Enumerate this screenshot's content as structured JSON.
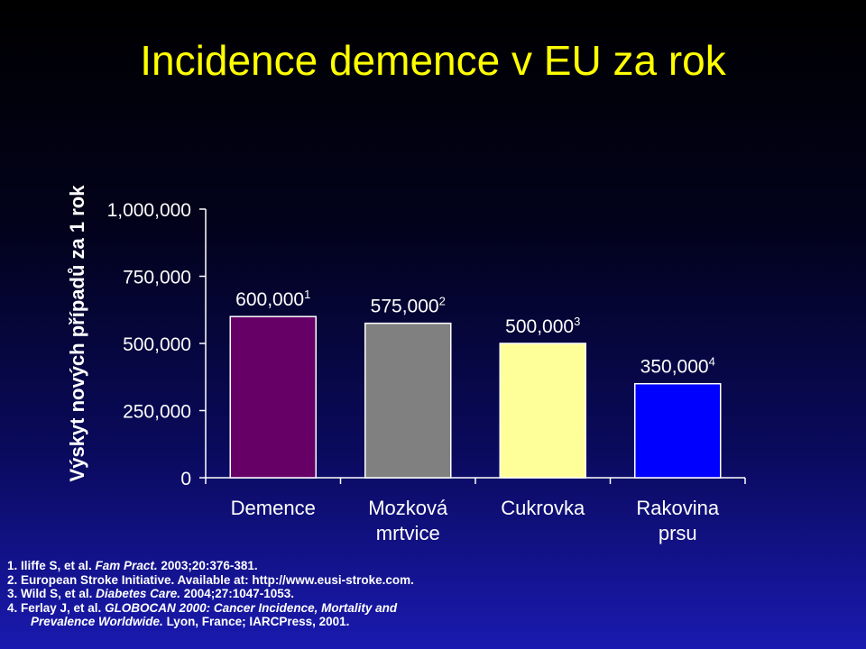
{
  "title": "Incidence demence v EU za rok",
  "colors": {
    "title": "#ffff00",
    "text": "#ffffff",
    "axis": "#ffffff"
  },
  "chart_data": {
    "type": "bar",
    "ylabel": "Výskyt nových případů za 1 rok",
    "xlabel": "",
    "ylim": [
      0,
      1000000
    ],
    "yticks": [
      {
        "value": 0,
        "label": "0"
      },
      {
        "value": 250000,
        "label": "250,000"
      },
      {
        "value": 500000,
        "label": "500,000"
      },
      {
        "value": 750000,
        "label": "750,000"
      },
      {
        "value": 1000000,
        "label": "1,000,000"
      }
    ],
    "grid": false,
    "legend": "none",
    "bars": [
      {
        "category": [
          "Demence"
        ],
        "value": 600000,
        "value_label": "600,000",
        "ref": "1",
        "color": "#660066"
      },
      {
        "category": [
          "Mozková",
          "mrtvice"
        ],
        "value": 575000,
        "value_label": "575,000",
        "ref": "2",
        "color": "#808080"
      },
      {
        "category": [
          "Cukrovka"
        ],
        "value": 500000,
        "value_label": "500,000",
        "ref": "3",
        "color": "#ffff99"
      },
      {
        "category": [
          "Rakovina",
          "prsu"
        ],
        "value": 350000,
        "value_label": "350,000",
        "ref": "4",
        "color": "#0000ff"
      }
    ]
  },
  "references": [
    [
      {
        "t": "1. Iliffe S, et al. "
      },
      {
        "t": "Fam Pract.",
        "i": true
      },
      {
        "t": " 2003;20:376-381."
      }
    ],
    [
      {
        "t": "2. European Stroke Initiative. Available at: http://www.eusi-stroke.com."
      }
    ],
    [
      {
        "t": "3. Wild S, et al. "
      },
      {
        "t": "Diabetes Care.",
        "i": true
      },
      {
        "t": " 2004;27:1047-1053."
      }
    ],
    [
      {
        "t": "4. Ferlay J, et al. "
      },
      {
        "t": "GLOBOCAN 2000: Cancer Incidence, Mortality and",
        "i": true
      }
    ],
    [
      {
        "t": "Prevalence Worldwide.",
        "i": true
      },
      {
        "t": " Lyon, France; IARCPress, 2001."
      }
    ]
  ]
}
